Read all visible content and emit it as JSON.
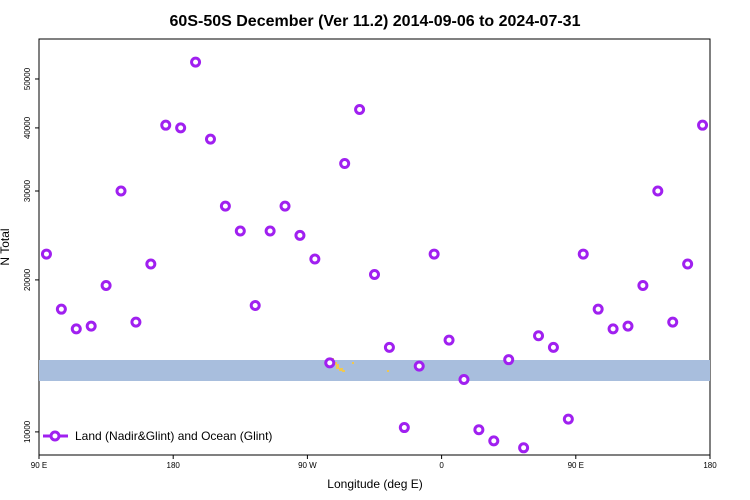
{
  "chart_data": {
    "type": "scatter",
    "title": "60S-50S December (Ver 11.2)   2014-09-06 to 2024-07-31",
    "xlabel": "Longitude (deg E)",
    "ylabel": "N Total",
    "x_ticks": [
      {
        "value": 90,
        "label": "90 E"
      },
      {
        "value": 180,
        "label": "180"
      },
      {
        "value": 270,
        "label": "90 W"
      },
      {
        "value": 360,
        "label": "0"
      },
      {
        "value": 450,
        "label": "90 E"
      },
      {
        "value": 540,
        "label": "180"
      }
    ],
    "y_ticks": [
      10000,
      20000,
      30000,
      40000,
      50000
    ],
    "xlim": [
      90,
      540
    ],
    "ylim": [
      9000,
      60000
    ],
    "y_scale": "log",
    "grid": false,
    "legend_position": "bottom-left",
    "series": [
      {
        "name": "Land (Nadir&Glint) and Ocean (Glint)",
        "color": "#a020f0",
        "marker": "open-circle",
        "x": [
          95,
          105,
          115,
          125,
          135,
          145,
          155,
          165,
          175,
          185,
          195,
          205,
          215,
          225,
          235,
          245,
          255,
          265,
          275,
          285,
          295,
          305,
          315,
          325,
          335,
          345,
          355,
          365,
          375,
          385,
          395,
          405,
          415,
          425,
          435,
          445,
          455,
          465,
          475,
          485,
          495,
          505,
          515,
          525,
          535
        ],
        "y": [
          22500,
          17500,
          16000,
          16200,
          19500,
          30000,
          16500,
          21500,
          40500,
          40000,
          54000,
          38000,
          28000,
          25000,
          17800,
          25000,
          28000,
          24500,
          22000,
          13700,
          34000,
          43500,
          20500,
          14700,
          10200,
          13500,
          22500,
          15200,
          12700,
          10100,
          9600,
          13900,
          9300,
          15500,
          14700,
          10600,
          22500,
          17500,
          16000,
          16200,
          19500,
          30000,
          16500,
          21500,
          40500
        ]
      }
    ],
    "overlays": [
      {
        "type": "band",
        "color": "#a8bedd"
      },
      {
        "type": "land_speckle",
        "color": "#f0c850"
      }
    ]
  }
}
